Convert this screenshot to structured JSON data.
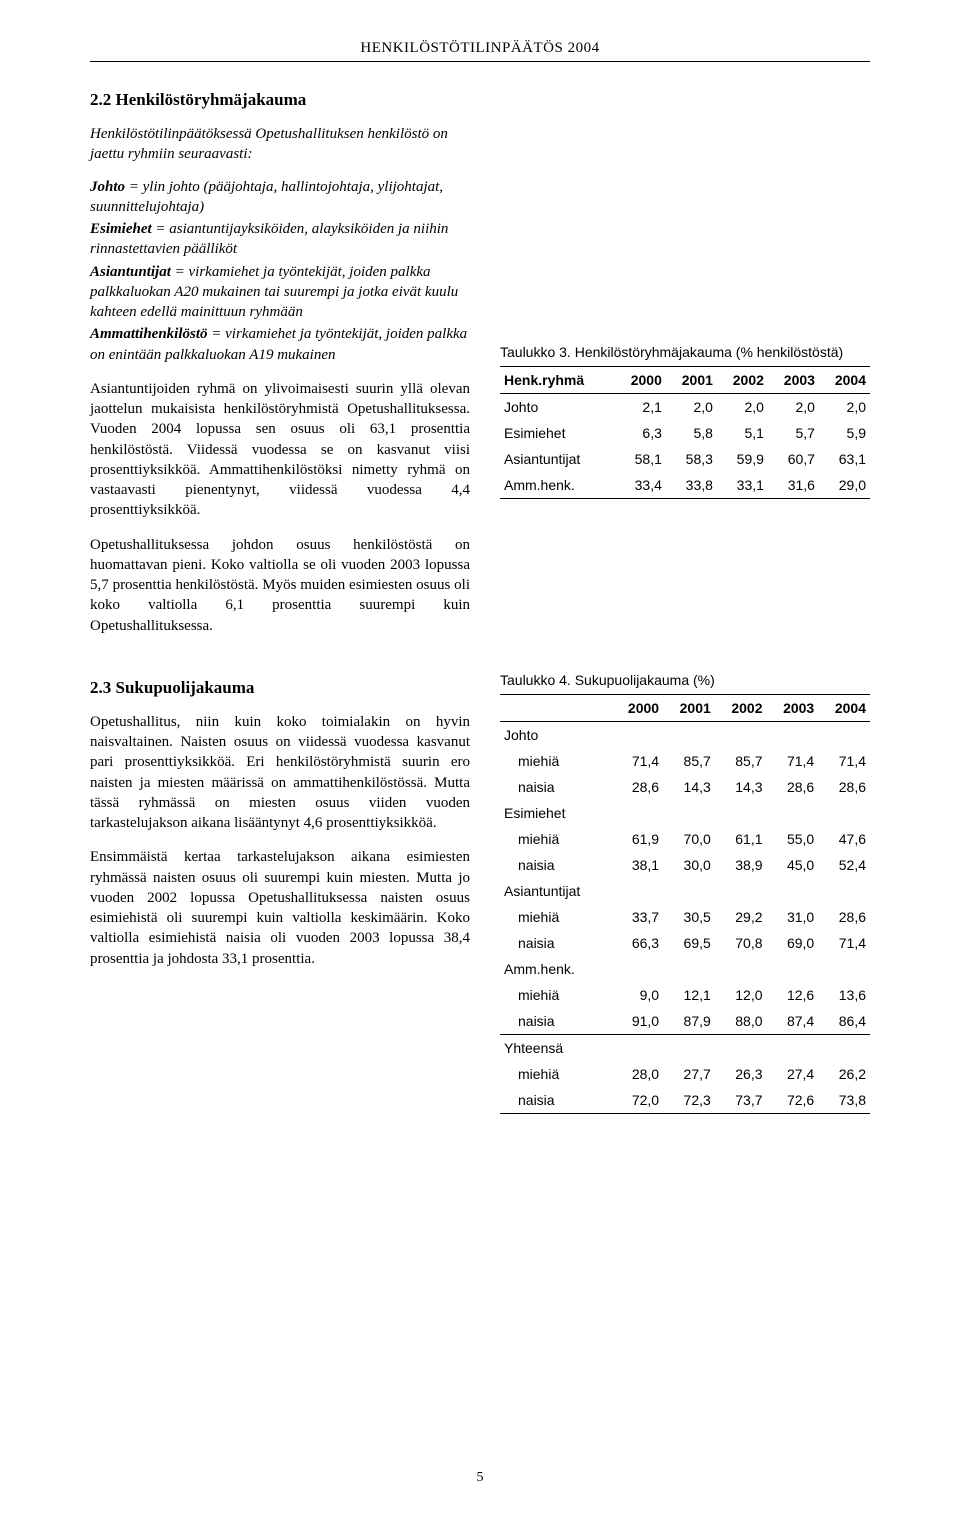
{
  "runhead": "HENKILÖSTÖTILINPÄÄTÖS 2004",
  "s22": {
    "title": "2.2  Henkilöstöryhmäjakauma",
    "intro_it": "Henkilöstötilinpäätöksessä Opetushallituksen henkilöstö on jaettu ryhmiin seuraavasti:",
    "def_johto_b": "Johto",
    "def_johto_rest": " = ylin johto (pääjohtaja, hallintojohtaja, ylijohtajat, suunnittelujohtaja)",
    "def_esim_b": "Esimiehet",
    "def_esim_rest": " = asiantuntijayksiköiden, alayksiköiden ja niihin rinnastettavien päälliköt",
    "def_asia_b": "Asiantuntijat",
    "def_asia_rest": " = virkamiehet ja työntekijät, joiden palkka palkkaluokan A20 mukainen tai suurempi ja jotka eivät kuulu kahteen edellä mainittuun ryhmään",
    "def_amm_b": "Ammattihenkilöstö",
    "def_amm_rest": " = virkamiehet ja työntekijät, joiden palkka on enintään palkkaluokan A19 mukainen",
    "p1": "Asiantuntijoiden ryhmä on ylivoimaisesti suurin yllä olevan jaottelun mukaisista henkilöstöryhmistä Opetushallituksessa. Vuoden 2004 lopussa sen osuus oli 63,1 prosenttia henkilöstöstä. Viidessä vuodessa se on kasvanut viisi prosenttiyksikköä. Ammattihenkilöstöksi nimetty ryhmä on vastaavasti pienentynyt, viidessä vuodessa 4,4 prosenttiyksikköä.",
    "p2": "Opetushallituksessa johdon osuus henkilöstöstä on huomattavan pieni. Koko valtiolla se oli vuoden 2003 lopussa 5,7 prosenttia henkilöstöstä. Myös muiden esimiesten osuus oli koko valtiolla 6,1 prosenttia suurempi kuin Opetushallituksessa."
  },
  "table3": {
    "title": "Taulukko 3. Henkilöstöryhmäjakauma (% henkilöstöstä)",
    "head": [
      "Henk.ryhmä",
      "2000",
      "2001",
      "2002",
      "2003",
      "2004"
    ],
    "rows": [
      [
        "Johto",
        "2,1",
        "2,0",
        "2,0",
        "2,0",
        "2,0"
      ],
      [
        "Esimiehet",
        "6,3",
        "5,8",
        "5,1",
        "5,7",
        "5,9"
      ],
      [
        "Asiantuntijat",
        "58,1",
        "58,3",
        "59,9",
        "60,7",
        "63,1"
      ],
      [
        "Amm.henk.",
        "33,4",
        "33,8",
        "33,1",
        "31,6",
        "29,0"
      ]
    ]
  },
  "s23": {
    "title": "2.3  Sukupuolijakauma",
    "p1": "Opetushallitus, niin kuin koko toimialakin on hyvin naisvaltainen. Naisten osuus on viidessä vuodessa kasvanut pari prosenttiyksikköä. Eri henkilöstöryhmistä suurin ero naisten ja miesten määrissä on ammattihenkilöstössä. Mutta tässä ryhmässä on miesten osuus viiden vuoden tarkastelujakson aikana lisääntynyt 4,6 prosenttiyksikköä.",
    "p2": "Ensimmäistä kertaa tarkastelujakson aikana esimiesten ryhmässä naisten osuus oli suurempi kuin miesten. Mutta jo vuoden 2002 lopussa Opetushallituksessa naisten osuus esimiehistä oli suurempi kuin valtiolla keskimäärin. Koko valtiolla esimiehistä naisia oli vuoden 2003 lopussa 38,4 prosenttia ja johdosta 33,1 prosenttia."
  },
  "table4": {
    "title": "Taulukko 4. Sukupuolijakauma (%)",
    "head": [
      "",
      "2000",
      "2001",
      "2002",
      "2003",
      "2004"
    ],
    "groups": [
      {
        "label": "Johto",
        "rows": [
          [
            "miehiä",
            "71,4",
            "85,7",
            "85,7",
            "71,4",
            "71,4"
          ],
          [
            "naisia",
            "28,6",
            "14,3",
            "14,3",
            "28,6",
            "28,6"
          ]
        ]
      },
      {
        "label": "Esimiehet",
        "rows": [
          [
            "miehiä",
            "61,9",
            "70,0",
            "61,1",
            "55,0",
            "47,6"
          ],
          [
            "naisia",
            "38,1",
            "30,0",
            "38,9",
            "45,0",
            "52,4"
          ]
        ]
      },
      {
        "label": "Asiantuntijat",
        "rows": [
          [
            "miehiä",
            "33,7",
            "30,5",
            "29,2",
            "31,0",
            "28,6"
          ],
          [
            "naisia",
            "66,3",
            "69,5",
            "70,8",
            "69,0",
            "71,4"
          ]
        ]
      },
      {
        "label": "Amm.henk.",
        "rows": [
          [
            "miehiä",
            "9,0",
            "12,1",
            "12,0",
            "12,6",
            "13,6"
          ],
          [
            "naisia",
            "91,0",
            "87,9",
            "88,0",
            "87,4",
            "86,4"
          ]
        ]
      },
      {
        "label": "Yhteensä",
        "rows": [
          [
            "miehiä",
            "28,0",
            "27,7",
            "26,3",
            "27,4",
            "26,2"
          ],
          [
            "naisia",
            "72,0",
            "72,3",
            "73,7",
            "72,6",
            "73,8"
          ]
        ],
        "sep": true
      }
    ]
  },
  "pagenum": "5"
}
